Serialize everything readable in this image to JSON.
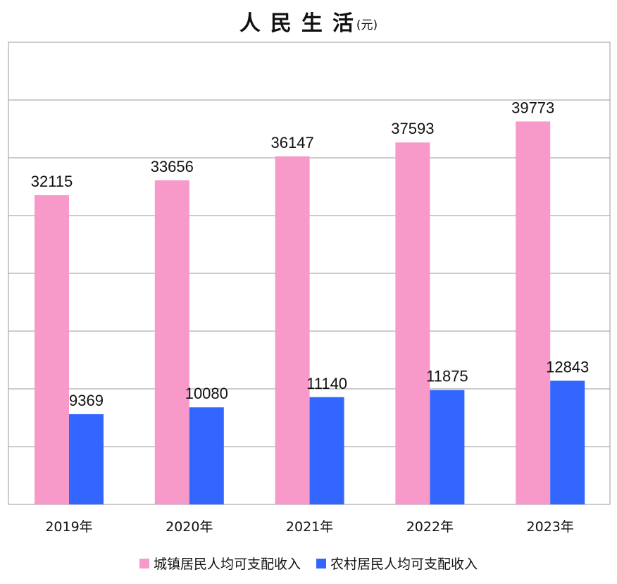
{
  "title": "人民生活",
  "unit": "(元)",
  "chart_data": {
    "type": "bar",
    "categories": [
      "2019年",
      "2020年",
      "2021年",
      "2022年",
      "2023年"
    ],
    "series": [
      {
        "name": "城镇居民人均可支配收入",
        "color": "#f799c9",
        "values": [
          32115,
          33656,
          36147,
          37593,
          39773
        ]
      },
      {
        "name": "农村居民人均可支配收入",
        "color": "#3366ff",
        "values": [
          9369,
          10080,
          11140,
          11875,
          12843
        ]
      }
    ],
    "ylim": [
      0,
      48000
    ],
    "grid": true,
    "legend": "bottom"
  }
}
